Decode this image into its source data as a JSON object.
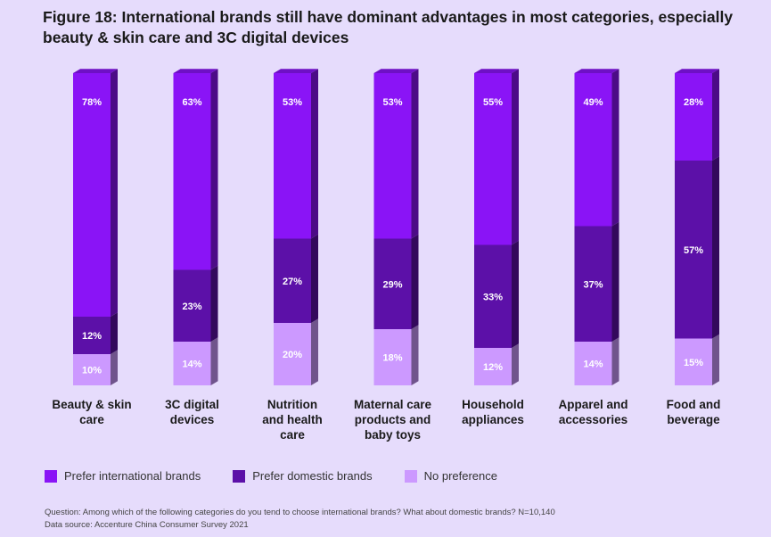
{
  "chart_data": {
    "type": "bar",
    "stacked": true,
    "title": "Figure 18: International brands still have dominant advantages in most categories, especially beauty & skin care and 3C digital devices",
    "categories": [
      [
        "Beauty & skin",
        "care"
      ],
      [
        "3C digital",
        "devices"
      ],
      [
        "Nutrition",
        "and health",
        "care"
      ],
      [
        "Maternal care",
        "products and",
        "baby toys"
      ],
      [
        "Household",
        "appliances"
      ],
      [
        "Apparel and",
        "accessories"
      ],
      [
        "Food and",
        "beverage"
      ]
    ],
    "series": [
      {
        "name": "No preference",
        "color": "#cc99ff",
        "values": [
          10,
          14,
          20,
          18,
          12,
          14,
          15
        ]
      },
      {
        "name": "Prefer domestic brands",
        "color": "#5c10a8",
        "values": [
          12,
          23,
          27,
          29,
          33,
          37,
          57
        ]
      },
      {
        "name": "Prefer international brands",
        "color": "#8a14f6",
        "values": [
          78,
          63,
          53,
          53,
          55,
          49,
          28
        ]
      }
    ],
    "ylim": [
      0,
      100
    ],
    "legend": [
      "Prefer international brands",
      "Prefer domestic brands",
      "No preference"
    ],
    "legend_position": "bottom-left"
  },
  "notes": {
    "question": "Question: Among which of the following categories do you tend to choose international brands? What about domestic brands? N=10,140",
    "source": "Data source: Accenture China Consumer Survey 2021"
  }
}
